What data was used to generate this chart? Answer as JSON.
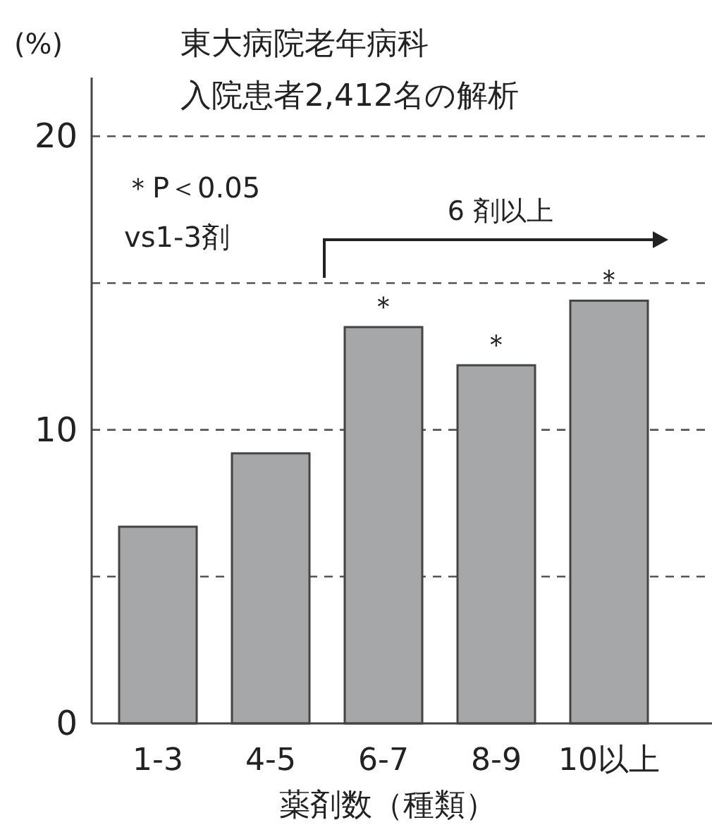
{
  "chart_data": {
    "type": "bar",
    "title": "東大病院老年病科",
    "subtitle": "入院患者2,412名の解析",
    "ylabel": "(%)",
    "xlabel": "薬剤数（種類）",
    "categories": [
      "1-3",
      "4-5",
      "6-7",
      "8-9",
      "10以上"
    ],
    "values": [
      6.7,
      9.2,
      13.5,
      12.2,
      14.4
    ],
    "color": "#a6a7a9",
    "ylim": [
      0,
      22
    ],
    "yticks": [
      0,
      {
        "value": 5,
        "label": null
      },
      10,
      {
        "value": 15,
        "label": null
      },
      20
    ],
    "grid": "y",
    "annotations": [
      "＊P＜0.05",
      "vs1-3剤",
      "6 剤以上",
      {
        "text": "＊",
        "x": "6-7",
        "y": 13.5
      },
      {
        "text": "＊",
        "x": "8-9",
        "y": 12.2
      },
      {
        "text": "＊",
        "x": "10以上",
        "y": 14.4
      }
    ]
  }
}
